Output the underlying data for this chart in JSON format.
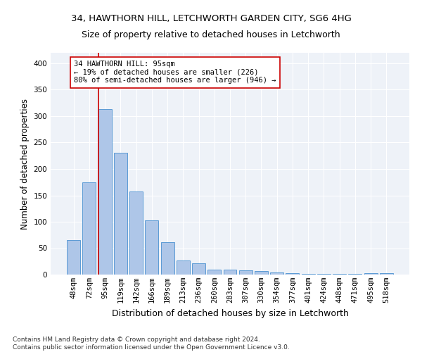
{
  "title": "34, HAWTHORN HILL, LETCHWORTH GARDEN CITY, SG6 4HG",
  "subtitle": "Size of property relative to detached houses in Letchworth",
  "xlabel": "Distribution of detached houses by size in Letchworth",
  "ylabel": "Number of detached properties",
  "bar_color": "#aec6e8",
  "bar_edge_color": "#5b9bd5",
  "background_color": "#eef2f8",
  "grid_color": "#ffffff",
  "annotation_line_color": "#cc0000",
  "annotation_box_color": "#cc0000",
  "annotation_text": "34 HAWTHORN HILL: 95sqm\n← 19% of detached houses are smaller (226)\n80% of semi-detached houses are larger (946) →",
  "property_bin_index": 2,
  "categories": [
    "48sqm",
    "72sqm",
    "95sqm",
    "119sqm",
    "142sqm",
    "166sqm",
    "189sqm",
    "213sqm",
    "236sqm",
    "260sqm",
    "283sqm",
    "307sqm",
    "330sqm",
    "354sqm",
    "377sqm",
    "401sqm",
    "424sqm",
    "448sqm",
    "471sqm",
    "495sqm",
    "518sqm"
  ],
  "values": [
    65,
    175,
    313,
    230,
    157,
    103,
    62,
    27,
    22,
    10,
    10,
    8,
    7,
    4,
    3,
    2,
    2,
    1,
    1,
    3,
    3
  ],
  "ylim": [
    0,
    420
  ],
  "yticks": [
    0,
    50,
    100,
    150,
    200,
    250,
    300,
    350,
    400
  ],
  "footer_text": "Contains HM Land Registry data © Crown copyright and database right 2024.\nContains public sector information licensed under the Open Government Licence v3.0.",
  "title_fontsize": 9.5,
  "subtitle_fontsize": 9,
  "xlabel_fontsize": 9,
  "ylabel_fontsize": 8.5,
  "tick_fontsize": 7.5,
  "annotation_fontsize": 7.5,
  "footer_fontsize": 6.5
}
